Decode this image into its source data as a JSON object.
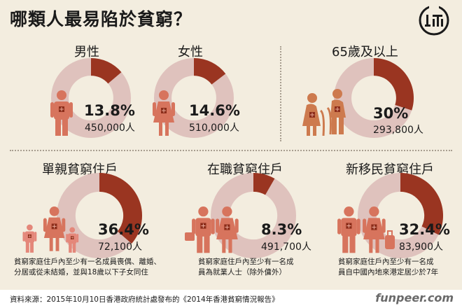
{
  "title": "哪類人最易陷於貧窮？",
  "colors": {
    "background": "#f3eddf",
    "donut_share": "#9a3521",
    "donut_rest": "#dfc2bd",
    "figure_adult": "#d7745d",
    "figure_child": "#e4877a",
    "figure_elder": "#cd7a4e",
    "patch": "#8c2d1a"
  },
  "groups": [
    {
      "id": "male",
      "label": "男性",
      "percent": "13.8%",
      "share": 0.138,
      "count": "450,000人",
      "note": []
    },
    {
      "id": "female",
      "label": "女性",
      "percent": "14.6%",
      "share": 0.146,
      "count": "510,000人",
      "note": []
    },
    {
      "id": "elderly",
      "label": "65歲及以上",
      "percent": "30%",
      "share": 0.3,
      "count": "293,800人",
      "note": []
    },
    {
      "id": "single-parent",
      "label": "單親貧窮住戶",
      "percent": "36.4%",
      "share": 0.364,
      "count": "72,100人",
      "note": [
        "貧窮家庭住戶內至少有一名成員喪偶、離婚、",
        "分居或從未結婚，並與18歲以下子女同住"
      ]
    },
    {
      "id": "working",
      "label": "在職貧窮住戶",
      "percent": "8.3%",
      "share": 0.083,
      "count": "491,700人",
      "note": [
        "貧窮家庭住戶內至少有一名成",
        "員為就業人士（除外傭外）"
      ]
    },
    {
      "id": "new-arrival",
      "label": "新移民貧窮住戶",
      "percent": "32.4%",
      "share": 0.324,
      "count": "83,900人",
      "note": [
        "貧窮家庭住戶內至少有一名成",
        "員自中國內地來港定居少於7年"
      ]
    }
  ],
  "logo": {
    "glyphs": "端"
  },
  "source": "資料來源：2015年10月10日香港政府統計處發布的《2014年香港貧窮情況報告》",
  "watermark": "funpeer.com"
}
